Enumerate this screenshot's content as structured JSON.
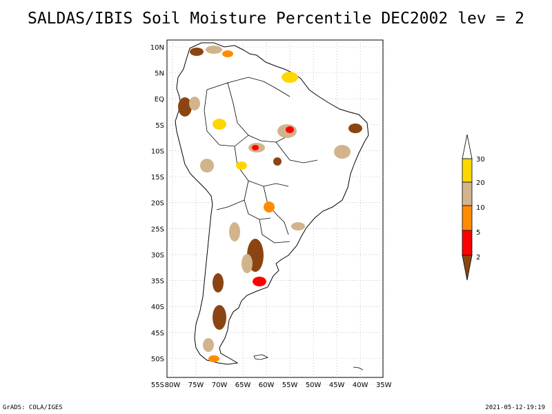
{
  "title": "SALDAS/IBIS Soil Moisture Percentile DEC2002 lev = 2",
  "map": {
    "lat_labels": [
      "10N",
      "5N",
      "EQ",
      "5S",
      "10S",
      "15S",
      "20S",
      "25S",
      "30S",
      "35S",
      "40S",
      "45S",
      "50S",
      "55S"
    ],
    "lon_labels": [
      "80W",
      "75W",
      "70W",
      "65W",
      "60W",
      "55W",
      "50W",
      "45W",
      "40W",
      "35W"
    ],
    "lat_range": [
      10,
      -55
    ],
    "lon_range": [
      -80,
      -34
    ]
  },
  "legend": {
    "labels": [
      "30",
      "20",
      "10",
      "5",
      "2"
    ],
    "colors": {
      "over30": "#ffffff",
      "20-30": "#ffd700",
      "10-20": "#d2b48c",
      "5-10": "#ff8c00",
      "2-5": "#ff0000",
      "under2": "#8b4513"
    }
  },
  "footer": {
    "left": "GrADS: COLA/IGES",
    "right": "2021-05-12-19:19"
  },
  "colors": {
    "frame": "#000000",
    "grid": "#999999",
    "coast": "#000000"
  }
}
